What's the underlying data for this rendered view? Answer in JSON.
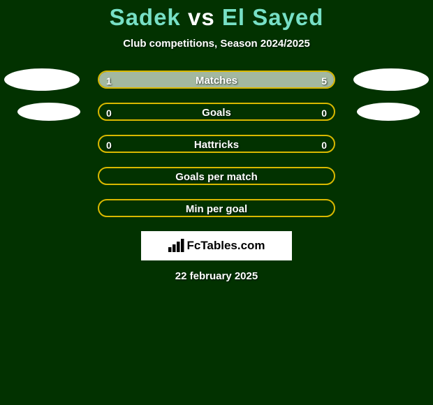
{
  "title_left": "Sadek",
  "title_vs": "vs",
  "title_right": "El Sayed",
  "title_color_name": "#77e0c6",
  "title_color_vs": "#ffffff",
  "subtitle": "Club competitions, Season 2024/2025",
  "background_color": "#023200",
  "bar_border_color": "#d9b800",
  "fill_color": "#a3b8a0",
  "avatar_color": "#ffffff",
  "brand_box_bg": "#ffffff",
  "text_color": "#ffffff",
  "rows": [
    {
      "metric": "Matches",
      "left": "1",
      "right": "5",
      "fill_left_pct": 18,
      "fill_right_pct": 82,
      "avatar": "big"
    },
    {
      "metric": "Goals",
      "left": "0",
      "right": "0",
      "fill_left_pct": 0,
      "fill_right_pct": 0,
      "avatar": "small"
    },
    {
      "metric": "Hattricks",
      "left": "0",
      "right": "0",
      "fill_left_pct": 0,
      "fill_right_pct": 0,
      "avatar": "none"
    },
    {
      "metric": "Goals per match",
      "left": "",
      "right": "",
      "fill_left_pct": 0,
      "fill_right_pct": 0,
      "avatar": "none"
    },
    {
      "metric": "Min per goal",
      "left": "",
      "right": "",
      "fill_left_pct": 0,
      "fill_right_pct": 0,
      "avatar": "none"
    }
  ],
  "brand_text": "FcTables.com",
  "date": "22 february 2025"
}
